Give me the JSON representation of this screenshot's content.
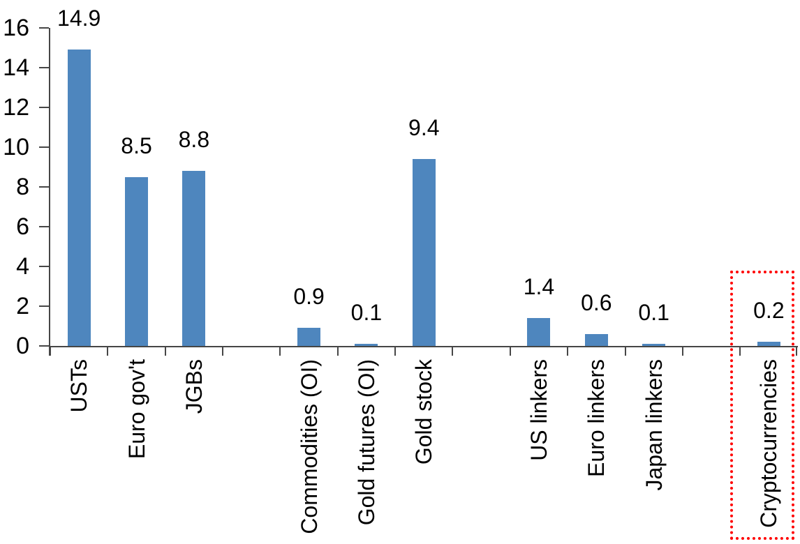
{
  "chart_data": {
    "type": "bar",
    "title": "",
    "xlabel": "",
    "ylabel": "",
    "categories": [
      "USTs",
      "Euro gov't",
      "JGBs",
      "",
      "Commodities (OI)",
      "Gold futures (OI)",
      "Gold stock",
      "",
      "US linkers",
      "Euro linkers",
      "Japan linkers",
      "",
      "Cryptocurrencies"
    ],
    "values": [
      14.9,
      8.5,
      8.8,
      null,
      0.9,
      0.1,
      9.4,
      null,
      1.4,
      0.6,
      0.1,
      null,
      0.2
    ],
    "value_labels": [
      "14.9",
      "8.5",
      "8.8",
      "",
      "0.9",
      "0.1",
      "9.4",
      "",
      "1.4",
      "0.6",
      "0.1",
      "",
      "0.2"
    ],
    "y_tick_labels": [
      "0",
      "2",
      "4",
      "6",
      "8",
      "10",
      "12",
      "14",
      "16"
    ],
    "ylim": [
      0,
      16
    ],
    "y_tick_step": 2,
    "grid": false,
    "legend_position": "none",
    "bar_color": "#4E86BE",
    "axis_color": "#464646",
    "text_color": "#000000",
    "highlight": {
      "target_category": "Cryptocurrencies",
      "shape": "dotted-rectangle",
      "color": "#FF0000"
    }
  }
}
